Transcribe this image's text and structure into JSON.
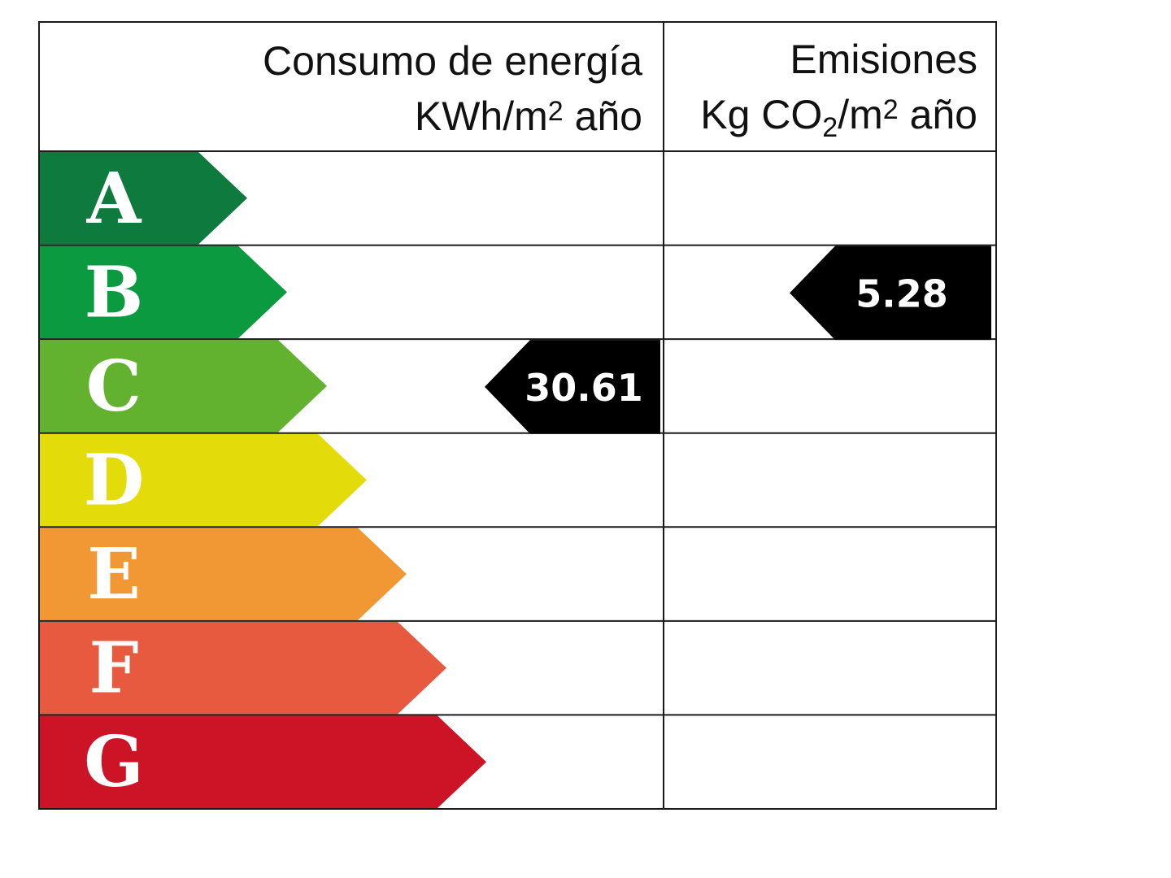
{
  "chart_data": {
    "type": "table",
    "columns": [
      {
        "key": "energy",
        "line1": "Consumo de energía",
        "line2_pre": "KWh/m",
        "line2_sup": "2",
        "line2_post": " año"
      },
      {
        "key": "emissions",
        "line1": "Emisiones",
        "line2_pre": "Kg CO",
        "line2_sub": "2",
        "line2_mid": "/m",
        "line2_sup": "2",
        "line2_post": " año"
      }
    ],
    "ratings": [
      {
        "letter": "A",
        "color": "#0f7a3d"
      },
      {
        "letter": "B",
        "color": "#0c9a40"
      },
      {
        "letter": "C",
        "color": "#63b22f"
      },
      {
        "letter": "D",
        "color": "#e4dc0a"
      },
      {
        "letter": "E",
        "color": "#f19733"
      },
      {
        "letter": "F",
        "color": "#e85a40"
      },
      {
        "letter": "G",
        "color": "#cd1427"
      }
    ],
    "indicators": [
      {
        "column": "energy",
        "rating": "C",
        "value": "30.61"
      },
      {
        "column": "emissions",
        "rating": "B",
        "value": "5.28"
      }
    ],
    "indicator_color": "#000000",
    "indicator_text_color": "#ffffff"
  }
}
